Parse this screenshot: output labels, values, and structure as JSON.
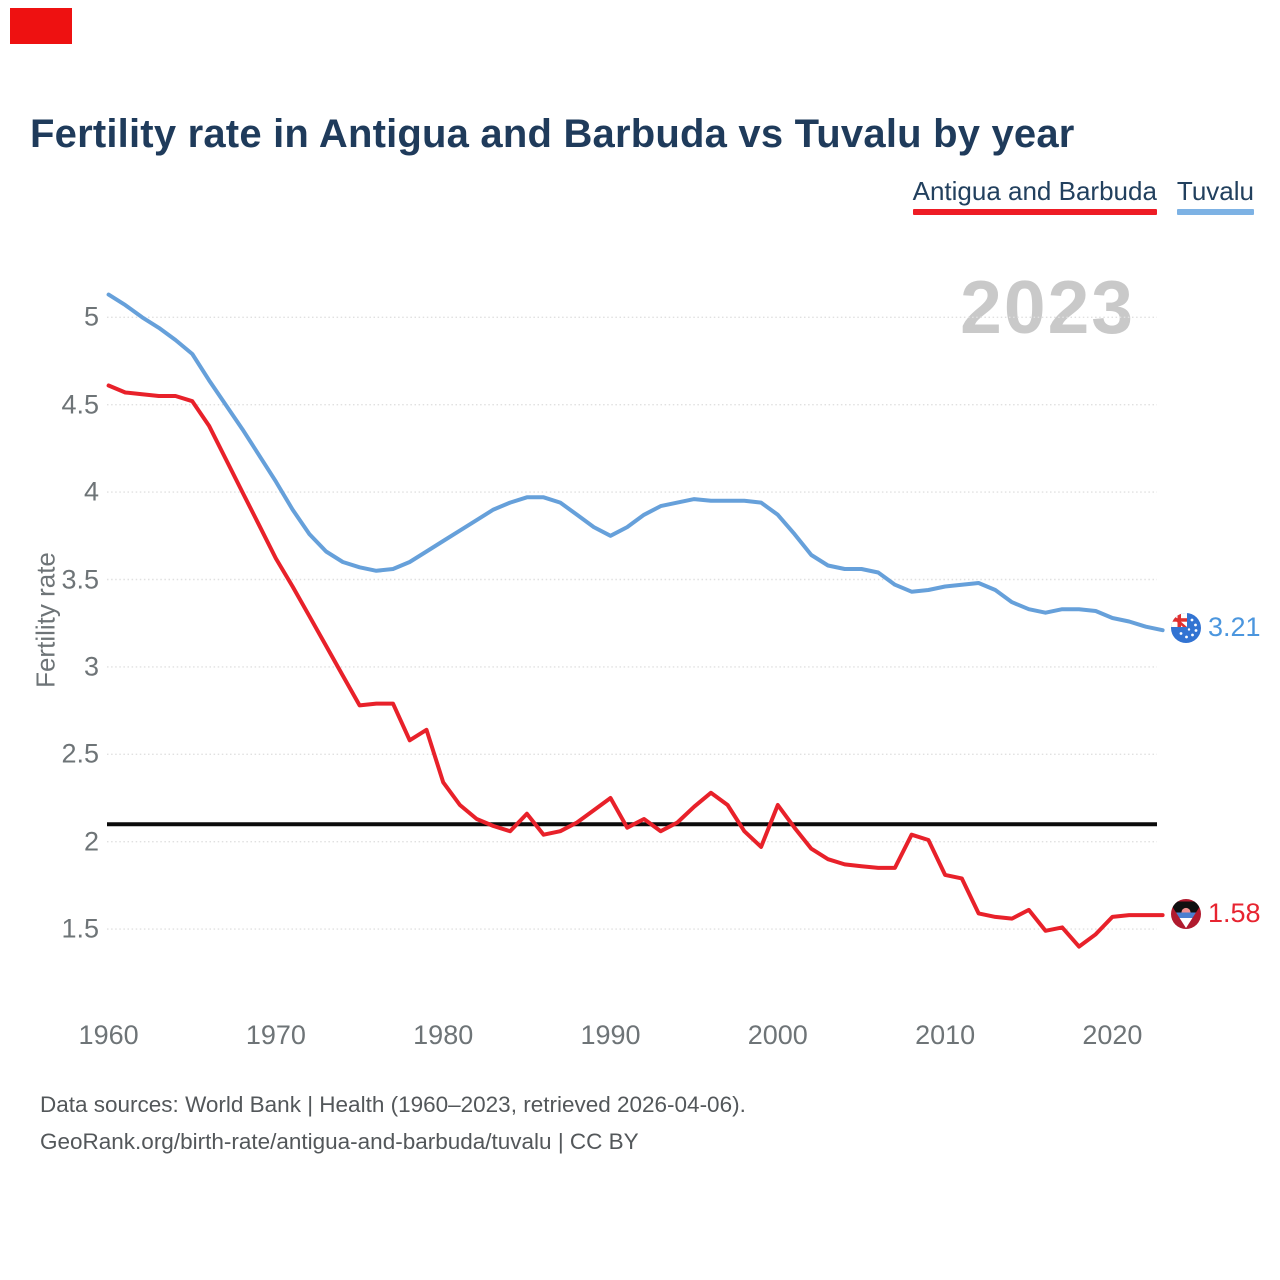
{
  "marker": {
    "color": "#ee1111"
  },
  "title": {
    "text": "Fertility rate in Antigua and Barbuda vs Tuvalu by year"
  },
  "watermark": "2023",
  "chart_data": {
    "type": "line",
    "title": "Fertility rate in Antigua and Barbuda vs Tuvalu by year",
    "ylabel": "Fertility rate",
    "xlabel": "",
    "grid": true,
    "legend_position": "top-right",
    "x_ticks": [
      1960,
      1970,
      1980,
      1990,
      2000,
      2010,
      2020
    ],
    "y_ticks": [
      5,
      4.5,
      4,
      3.5,
      3,
      2.5,
      2,
      1.5
    ],
    "ylim": [
      1.3,
      5.2
    ],
    "xlim": [
      1960,
      2023
    ],
    "reference_line": {
      "value": 2.1,
      "color": "#0b0b0b"
    },
    "x": [
      1960,
      1961,
      1962,
      1963,
      1964,
      1965,
      1966,
      1967,
      1968,
      1969,
      1970,
      1971,
      1972,
      1973,
      1974,
      1975,
      1976,
      1977,
      1978,
      1979,
      1980,
      1981,
      1982,
      1983,
      1984,
      1985,
      1986,
      1987,
      1988,
      1989,
      1990,
      1991,
      1992,
      1993,
      1994,
      1995,
      1996,
      1997,
      1998,
      1999,
      2000,
      2001,
      2002,
      2003,
      2004,
      2005,
      2006,
      2007,
      2008,
      2009,
      2010,
      2011,
      2012,
      2013,
      2014,
      2015,
      2016,
      2017,
      2018,
      2019,
      2020,
      2021,
      2022,
      2023
    ],
    "series": [
      {
        "name": "Antigua and Barbuda",
        "color": "#e8212a",
        "underline_color": "#ee1c25",
        "value_color": "#e72430",
        "end_label": "1.58",
        "values": [
          4.61,
          4.57,
          4.56,
          4.55,
          4.55,
          4.52,
          4.38,
          4.19,
          4.0,
          3.81,
          3.62,
          3.46,
          3.29,
          3.12,
          2.95,
          2.78,
          2.79,
          2.79,
          2.58,
          2.64,
          2.34,
          2.21,
          2.13,
          2.09,
          2.06,
          2.16,
          2.04,
          2.06,
          2.11,
          2.18,
          2.25,
          2.08,
          2.13,
          2.06,
          2.11,
          2.2,
          2.28,
          2.21,
          2.06,
          1.97,
          2.21,
          2.08,
          1.96,
          1.9,
          1.87,
          1.86,
          1.85,
          1.85,
          2.04,
          2.01,
          1.81,
          1.79,
          1.59,
          1.57,
          1.56,
          1.61,
          1.49,
          1.51,
          1.4,
          1.47,
          1.57,
          1.58,
          1.58,
          1.58
        ]
      },
      {
        "name": "Tuvalu",
        "color": "#66a0da",
        "underline_color": "#7db2e4",
        "value_color": "#4b96de",
        "end_label": "3.21",
        "values": [
          5.13,
          5.07,
          5.0,
          4.94,
          4.87,
          4.79,
          4.64,
          4.5,
          4.36,
          4.21,
          4.06,
          3.9,
          3.76,
          3.66,
          3.6,
          3.57,
          3.55,
          3.56,
          3.6,
          3.66,
          3.72,
          3.78,
          3.84,
          3.9,
          3.94,
          3.97,
          3.97,
          3.94,
          3.87,
          3.8,
          3.75,
          3.8,
          3.87,
          3.92,
          3.94,
          3.96,
          3.95,
          3.95,
          3.95,
          3.94,
          3.87,
          3.76,
          3.64,
          3.58,
          3.56,
          3.56,
          3.54,
          3.47,
          3.43,
          3.44,
          3.46,
          3.47,
          3.48,
          3.44,
          3.37,
          3.33,
          3.31,
          3.33,
          3.33,
          3.32,
          3.28,
          3.26,
          3.23,
          3.21
        ]
      }
    ]
  },
  "footer": {
    "line1": "Data sources: World Bank | Health (1960–2023, retrieved 2026-04-06).",
    "line2": "GeoRank.org/birth-rate/antigua-and-barbuda/tuvalu | CC BY"
  }
}
